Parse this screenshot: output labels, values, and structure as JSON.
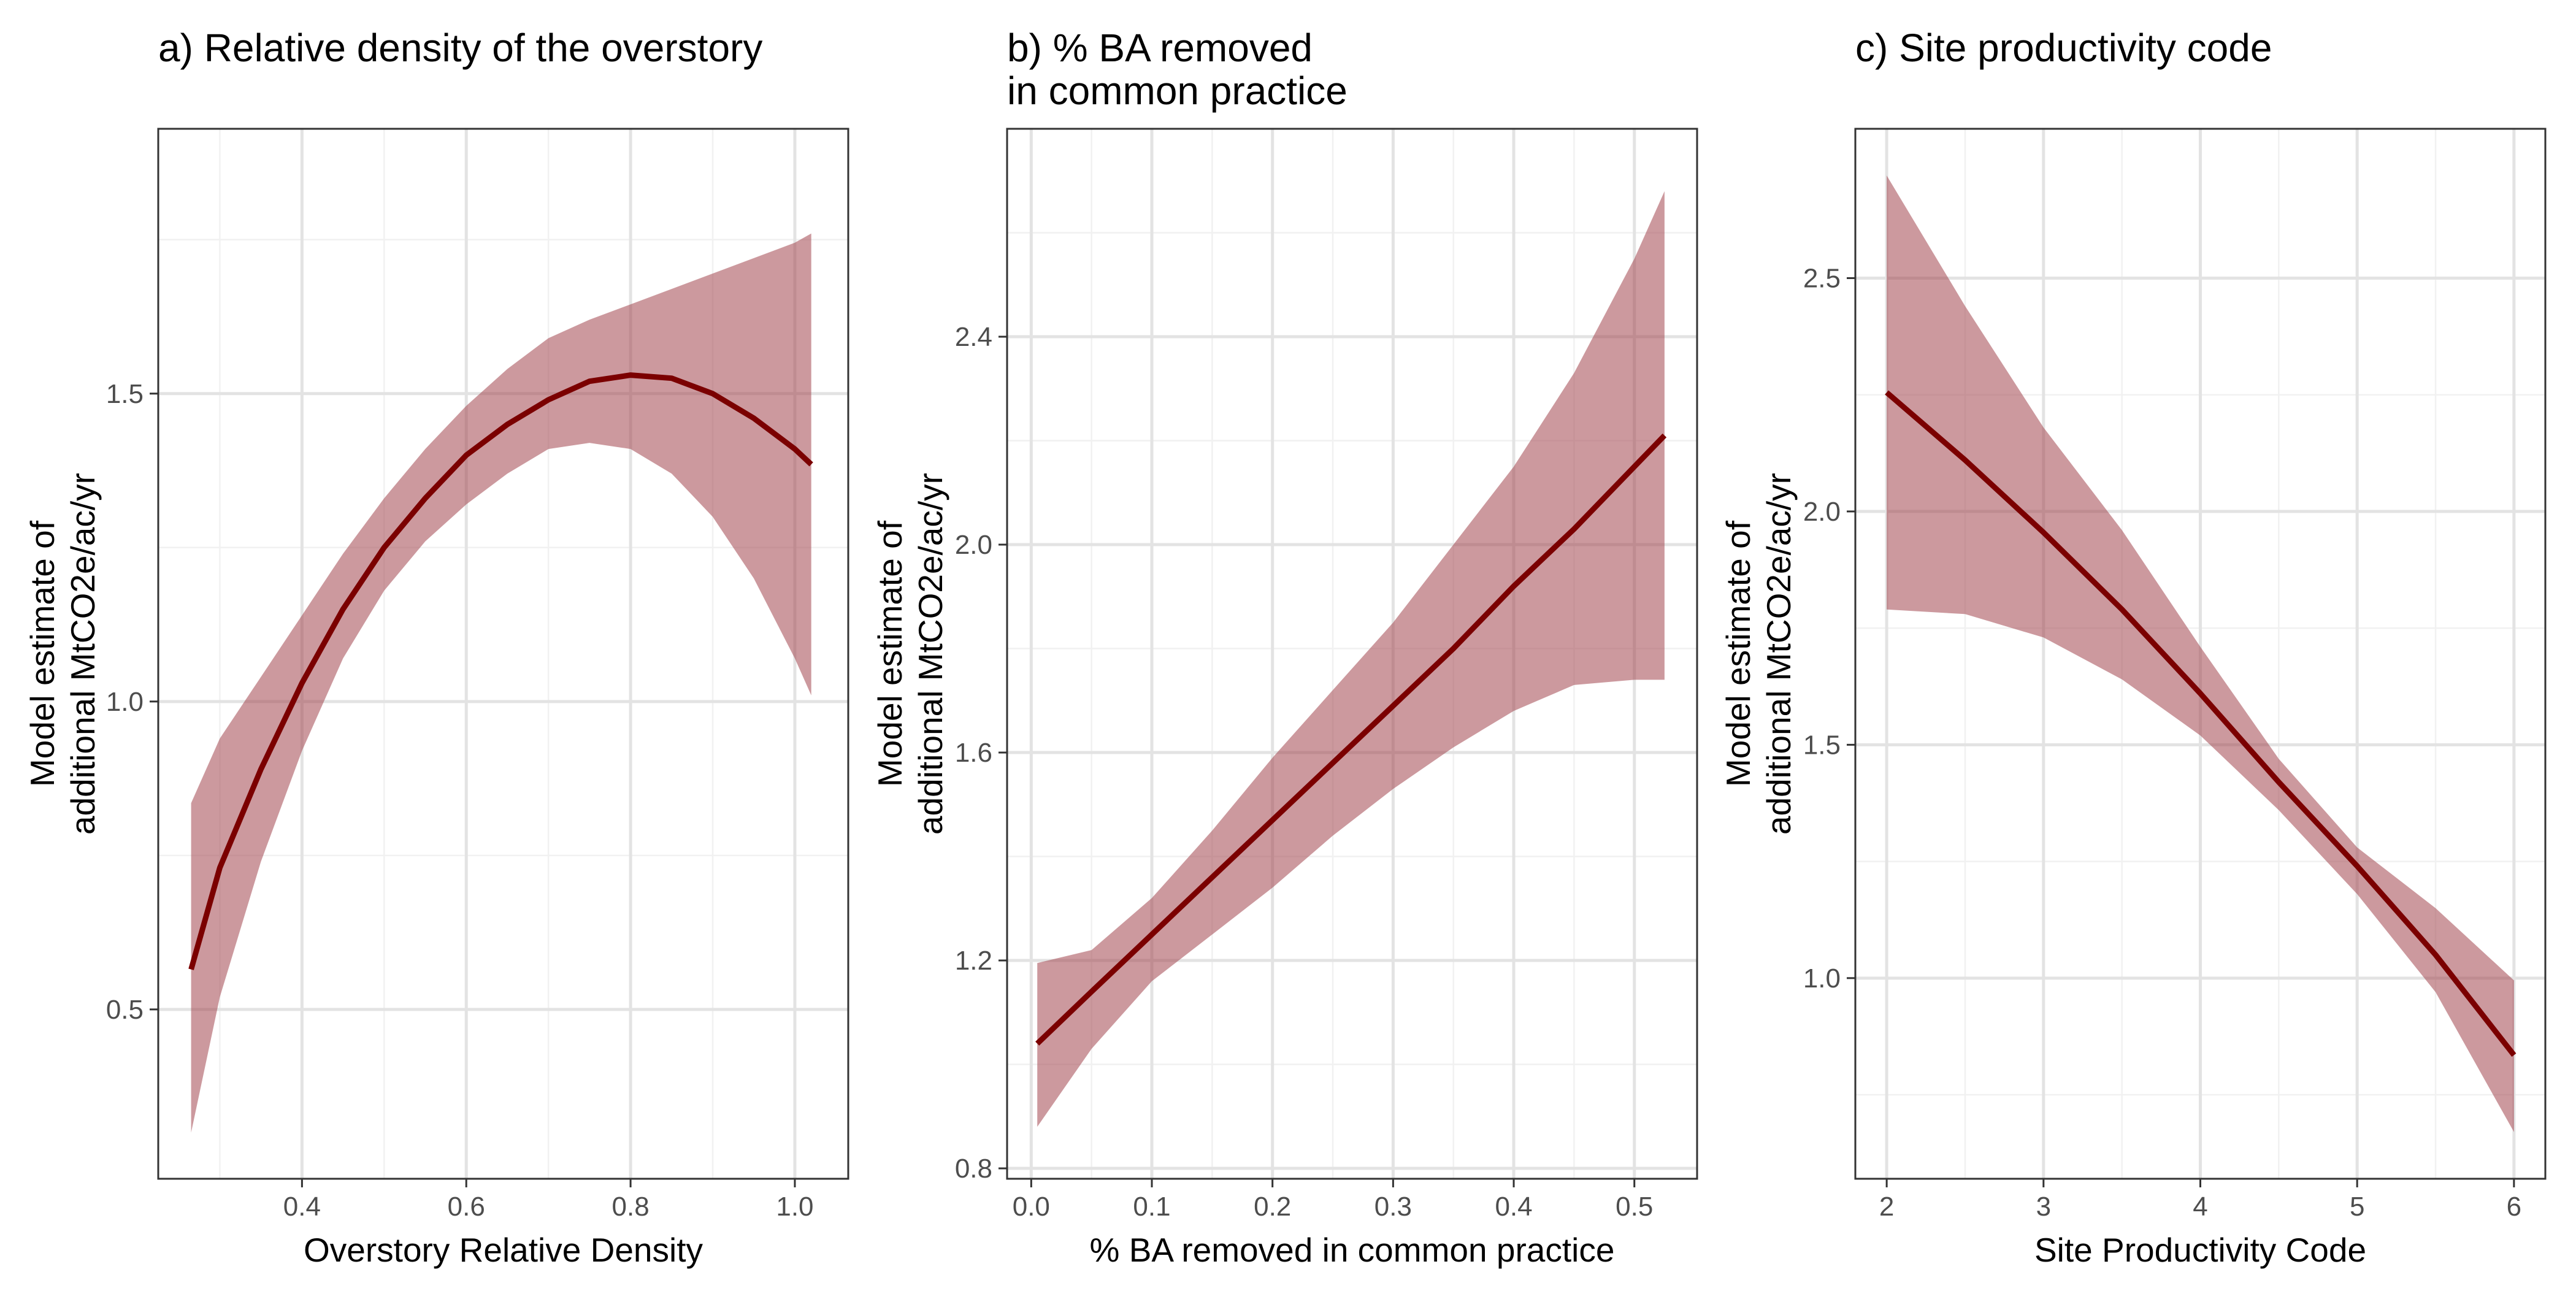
{
  "figure": {
    "accent_color": "#7b0000",
    "ribbon_color": "#a3464e",
    "ribbon_opacity": 0.55,
    "grid_major_color": "#e3e3e3",
    "grid_minor_color": "#f1f1f1",
    "panel_border_color": "#333333"
  },
  "chart_data": [
    {
      "type": "line",
      "title_lines": [
        "a) Relative density of the overstory"
      ],
      "xlabel": "Overstory Relative Density",
      "ylabel_lines": [
        "Model estimate of",
        "additional MtCO2e/ac/yr"
      ],
      "xlim": [
        0.225,
        1.065
      ],
      "ylim": [
        0.225,
        1.93
      ],
      "xticks": [
        0.4,
        0.6,
        0.8,
        1.0
      ],
      "xtick_labels": [
        "0.4",
        "0.6",
        "0.8",
        "1.0"
      ],
      "xminor": [
        0.3,
        0.5,
        0.7,
        0.9
      ],
      "yticks": [
        0.5,
        1.0,
        1.5
      ],
      "ytick_labels": [
        "0.5",
        "1.0",
        "1.5"
      ],
      "yminor": [
        0.75,
        1.25,
        1.75
      ],
      "grid": true,
      "series": [
        {
          "x": [
            0.265,
            0.3,
            0.35,
            0.4,
            0.45,
            0.5,
            0.55,
            0.6,
            0.65,
            0.7,
            0.75,
            0.8,
            0.85,
            0.9,
            0.95,
            1.0,
            1.02
          ],
          "y": [
            0.565,
            0.73,
            0.89,
            1.03,
            1.15,
            1.25,
            1.33,
            1.4,
            1.45,
            1.49,
            1.52,
            1.53,
            1.525,
            1.5,
            1.46,
            1.41,
            1.385
          ],
          "lower": [
            0.3,
            0.52,
            0.74,
            0.92,
            1.07,
            1.18,
            1.26,
            1.32,
            1.37,
            1.41,
            1.42,
            1.41,
            1.37,
            1.3,
            1.2,
            1.07,
            1.01
          ],
          "upper": [
            0.835,
            0.94,
            1.04,
            1.14,
            1.24,
            1.33,
            1.41,
            1.48,
            1.54,
            1.59,
            1.62,
            1.645,
            1.67,
            1.695,
            1.72,
            1.745,
            1.76
          ]
        }
      ]
    },
    {
      "type": "line",
      "title_lines": [
        "b) % BA removed",
        "in common practice"
      ],
      "xlabel": "% BA removed in common practice",
      "ylabel_lines": [
        "Model estimate of",
        "additional MtCO2e/ac/yr"
      ],
      "xlim": [
        -0.02,
        0.552
      ],
      "ylim": [
        0.78,
        2.8
      ],
      "xticks": [
        0.0,
        0.1,
        0.2,
        0.3,
        0.4,
        0.5
      ],
      "xtick_labels": [
        "0.0",
        "0.1",
        "0.2",
        "0.3",
        "0.4",
        "0.5"
      ],
      "xminor": [
        0.05,
        0.15,
        0.25,
        0.35,
        0.45
      ],
      "yticks": [
        0.8,
        1.2,
        1.6,
        2.0,
        2.4
      ],
      "ytick_labels": [
        "0.8",
        "1.2",
        "1.6",
        "2.0",
        "2.4"
      ],
      "yminor": [
        1.0,
        1.4,
        1.8,
        2.2,
        2.6
      ],
      "grid": true,
      "series": [
        {
          "x": [
            0.005,
            0.05,
            0.1,
            0.15,
            0.2,
            0.25,
            0.3,
            0.35,
            0.4,
            0.45,
            0.5,
            0.525
          ],
          "y": [
            1.04,
            1.14,
            1.25,
            1.36,
            1.47,
            1.58,
            1.69,
            1.8,
            1.92,
            2.03,
            2.15,
            2.21
          ],
          "lower": [
            0.88,
            1.03,
            1.16,
            1.25,
            1.34,
            1.44,
            1.53,
            1.61,
            1.68,
            1.73,
            1.74,
            1.74
          ],
          "upper": [
            1.195,
            1.22,
            1.32,
            1.45,
            1.59,
            1.72,
            1.85,
            2.0,
            2.15,
            2.33,
            2.55,
            2.68
          ]
        }
      ]
    },
    {
      "type": "line",
      "title_lines": [
        "c) Site productivity code"
      ],
      "xlabel": "Site Productivity Code",
      "ylabel_lines": [
        "Model estimate of",
        "additional MtCO2e/ac/yr"
      ],
      "xlim": [
        1.8,
        6.2
      ],
      "ylim": [
        0.57,
        2.82
      ],
      "xticks": [
        2,
        3,
        4,
        5,
        6
      ],
      "xtick_labels": [
        "2",
        "3",
        "4",
        "5",
        "6"
      ],
      "xminor": [
        2.5,
        3.5,
        4.5,
        5.5
      ],
      "yticks": [
        1.0,
        1.5,
        2.0,
        2.5
      ],
      "ytick_labels": [
        "1.0",
        "1.5",
        "2.0",
        "2.5"
      ],
      "yminor": [
        0.75,
        1.25,
        1.75,
        2.25
      ],
      "grid": true,
      "series": [
        {
          "x": [
            2.0,
            2.5,
            3.0,
            3.5,
            4.0,
            4.5,
            5.0,
            5.5,
            6.0
          ],
          "y": [
            2.255,
            2.11,
            1.955,
            1.79,
            1.61,
            1.42,
            1.24,
            1.05,
            0.835
          ],
          "lower": [
            1.79,
            1.78,
            1.73,
            1.64,
            1.52,
            1.36,
            1.18,
            0.97,
            0.67
          ],
          "upper": [
            2.72,
            2.44,
            2.18,
            1.96,
            1.71,
            1.47,
            1.28,
            1.15,
            0.995
          ]
        }
      ]
    }
  ]
}
